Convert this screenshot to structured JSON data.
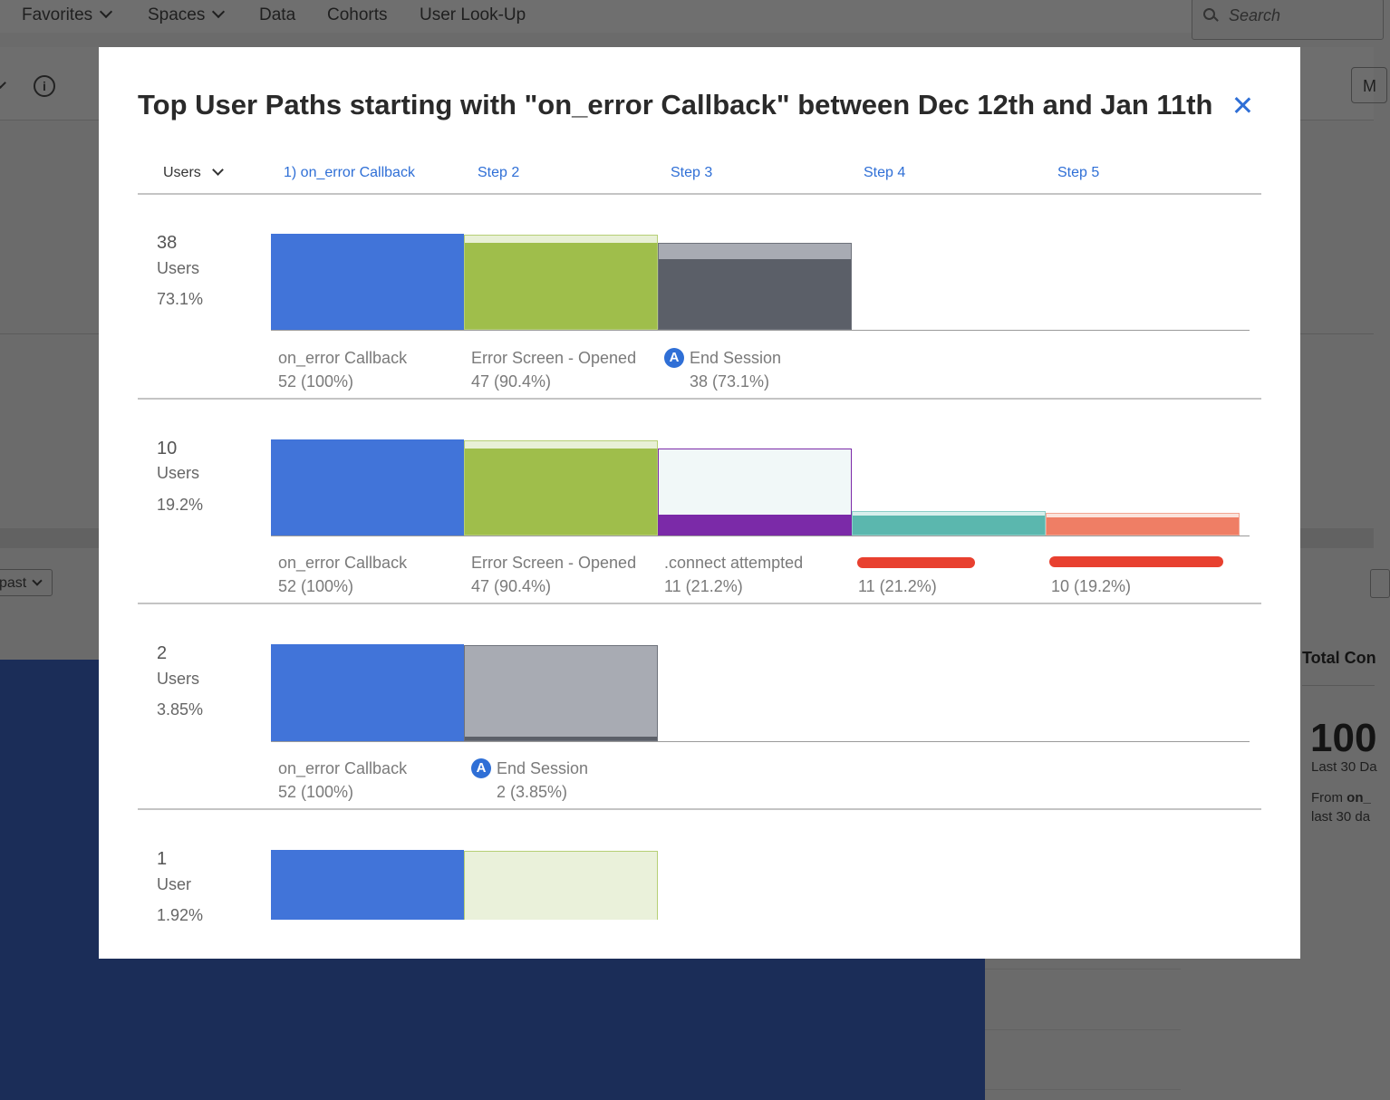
{
  "nav": {
    "favorites": "Favorites",
    "spaces": "Spaces",
    "data": "Data",
    "cohorts": "Cohorts",
    "user_lookup": "User Look-Up",
    "search_placeholder": "Search"
  },
  "background": {
    "m_button": "M",
    "info_icon": "i",
    "past_label": "past",
    "total_title": "Total Con",
    "total_value": "100",
    "last_label": "Last 30 Da",
    "from_prefix": "From ",
    "from_event": "on_",
    "from_suffix": "last 30 da"
  },
  "modal": {
    "title": "Top User Paths starting with \"on_error Callback\" between Dec 12th and Jan 11th",
    "header": {
      "metric": "Users",
      "steps": [
        "1) on_error Callback",
        "Step 2",
        "Step 3",
        "Step 4",
        "Step 5"
      ]
    },
    "paths": [
      {
        "count": "38",
        "unit": "Users",
        "pct": "73.1%",
        "steps": [
          {
            "label": "on_error Callback",
            "value": "52 (100%)"
          },
          {
            "label": "Error Screen - Opened",
            "value": "47 (90.4%)"
          },
          {
            "label": "End Session",
            "value": "38 (73.1%)"
          }
        ]
      },
      {
        "count": "10",
        "unit": "Users",
        "pct": "19.2%",
        "steps": [
          {
            "label": "on_error Callback",
            "value": "52 (100%)"
          },
          {
            "label": "Error Screen - Opened",
            "value": "47 (90.4%)"
          },
          {
            "label": ".connect attempted",
            "value": "11 (21.2%)"
          },
          {
            "label": "",
            "value": "11 (21.2%)"
          },
          {
            "label": "",
            "value": "10 (19.2%)"
          }
        ]
      },
      {
        "count": "2",
        "unit": "Users",
        "pct": "3.85%",
        "steps": [
          {
            "label": "on_error Callback",
            "value": "52 (100%)"
          },
          {
            "label": "End Session",
            "value": "2 (3.85%)"
          }
        ]
      },
      {
        "count": "1",
        "unit": "User",
        "pct": "1.92%",
        "steps": []
      }
    ]
  },
  "colors": {
    "blue": "#4174d9",
    "green": "#9fbe4b",
    "dark_gray": "#5b5f68",
    "light_gray": "#a8abb3",
    "purple": "#7b2aa8",
    "teal": "#5bb7ae",
    "salmon": "#ef7e65",
    "link": "#2f6fd6",
    "redaction": "#e8402f"
  }
}
